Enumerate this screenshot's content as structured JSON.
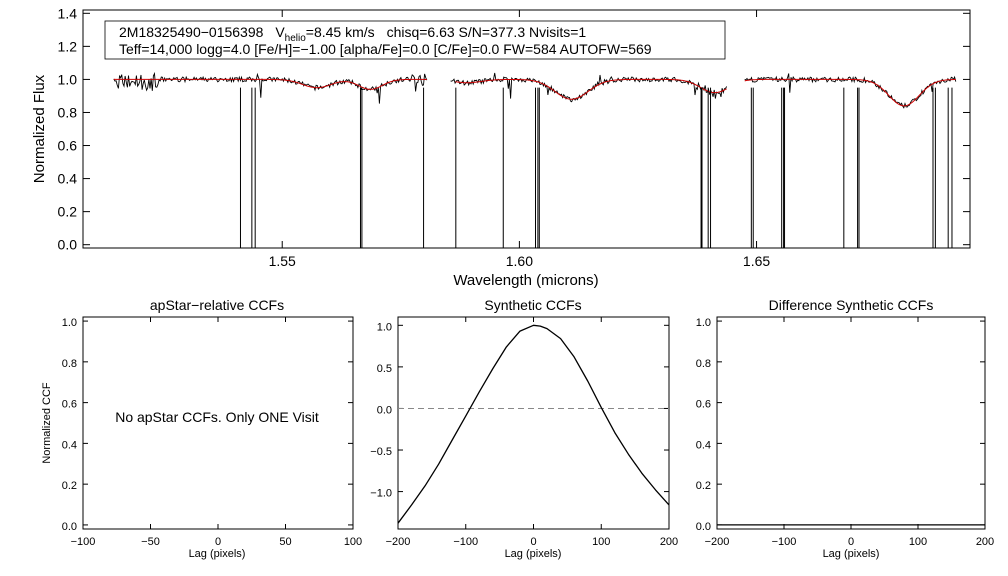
{
  "chart_data": [
    {
      "type": "line",
      "panel": "spectrum",
      "xlabel": "Wavelength (microns)",
      "ylabel": "Normalized Flux",
      "xlim": [
        1.508,
        1.695
      ],
      "ylim": [
        -0.02,
        1.42
      ],
      "x_ticks": [
        {
          "value": 1.55,
          "label": "1.55"
        },
        {
          "value": 1.6,
          "label": "1.60"
        },
        {
          "value": 1.65,
          "label": "1.65"
        }
      ],
      "y_ticks": [
        {
          "value": 0.0,
          "label": "0.0"
        },
        {
          "value": 0.2,
          "label": "0.2"
        },
        {
          "value": 0.4,
          "label": "0.4"
        },
        {
          "value": 0.6,
          "label": "0.6"
        },
        {
          "value": 0.8,
          "label": "0.8"
        },
        {
          "value": 1.0,
          "label": "1.0"
        },
        {
          "value": 1.2,
          "label": "1.2"
        },
        {
          "value": 1.4,
          "label": "1.4"
        }
      ],
      "info_line1": {
        "star": "2M18325490−0156398",
        "v_prefix": "V",
        "v_sub": "helio",
        "v_value": "=8.45 km/s",
        "rest": "chisq=6.63  S/N=377.3  Nvisits=1"
      },
      "info_line2": "Teff=14,000 logg=4.0 [Fe/H]=−1.00 [alpha/Fe]=0.0 [C/Fe]=0.0 FW=584 AUTOFW=569",
      "series": [
        {
          "color": "#000000",
          "segments": [
            [
              1.5145,
              1.5805
            ],
            [
              1.5855,
              1.6437
            ],
            [
              1.6475,
              1.692
            ]
          ]
        },
        {
          "color": "#cc0000",
          "segments": [
            [
              1.5145,
              1.5805
            ],
            [
              1.5865,
              1.6437
            ],
            [
              1.6475,
              1.692
            ]
          ]
        }
      ],
      "absorption_lines": [
        {
          "center": 1.5573,
          "depth": 0.05,
          "width": 0.003
        },
        {
          "center": 1.5686,
          "depth": 0.06,
          "width": 0.0025
        },
        {
          "center": 1.589,
          "depth": 0.02,
          "width": 0.003
        },
        {
          "center": 1.611,
          "depth": 0.12,
          "width": 0.0035
        },
        {
          "center": 1.6412,
          "depth": 0.08,
          "width": 0.003
        },
        {
          "center": 1.6811,
          "depth": 0.16,
          "width": 0.0032
        }
      ],
      "spikes": [
        1.5412,
        1.5436,
        1.5443,
        1.5665,
        1.5668,
        1.5798,
        1.5866,
        1.5966,
        1.6034,
        1.6039,
        1.6042,
        1.6383,
        1.6385,
        1.6398,
        1.6403,
        1.6489,
        1.6493,
        1.6553,
        1.6557,
        1.6559,
        1.6684,
        1.6713,
        1.6716,
        1.6872,
        1.6877,
        1.6904,
        1.6912
      ]
    },
    {
      "type": "line",
      "panel": "apstar-ccf",
      "title": "apStar−relative CCFs",
      "xlabel": "Lag (pixels)",
      "ylabel": "Normalized CCF",
      "xlim": [
        -100,
        100
      ],
      "ylim": [
        -0.02,
        1.02
      ],
      "x_ticks": [
        {
          "value": -100,
          "label": "−100"
        },
        {
          "value": -50,
          "label": "−50"
        },
        {
          "value": 0,
          "label": "0"
        },
        {
          "value": 50,
          "label": "50"
        },
        {
          "value": 100,
          "label": "100"
        }
      ],
      "y_ticks": [
        {
          "value": 0.0,
          "label": "0.0"
        },
        {
          "value": 0.2,
          "label": "0.2"
        },
        {
          "value": 0.4,
          "label": "0.4"
        },
        {
          "value": 0.6,
          "label": "0.6"
        },
        {
          "value": 0.8,
          "label": "0.8"
        },
        {
          "value": 1.0,
          "label": "1.0"
        }
      ],
      "message": "No apStar CCFs.  Only ONE Visit",
      "series": []
    },
    {
      "type": "line",
      "panel": "synthetic-ccf",
      "title": "Synthetic CCFs",
      "xlabel": "Lag (pixels)",
      "xlim": [
        -200,
        200
      ],
      "ylim": [
        -1.45,
        1.1
      ],
      "x_ticks": [
        {
          "value": -200,
          "label": "−200"
        },
        {
          "value": -100,
          "label": "−100"
        },
        {
          "value": 0,
          "label": "0"
        },
        {
          "value": 100,
          "label": "100"
        },
        {
          "value": 200,
          "label": "200"
        }
      ],
      "y_ticks": [
        {
          "value": -1.0,
          "label": "−1.0"
        },
        {
          "value": -0.5,
          "label": "−0.5"
        },
        {
          "value": 0.0,
          "label": "0.0"
        },
        {
          "value": 0.5,
          "label": "0.5"
        },
        {
          "value": 1.0,
          "label": "1.0"
        }
      ],
      "zero_line": 0.0,
      "series": [
        {
          "color": "#000000",
          "x": [
            -200,
            -180,
            -160,
            -140,
            -120,
            -100,
            -80,
            -60,
            -40,
            -20,
            0,
            10,
            20,
            40,
            60,
            80,
            100,
            120,
            140,
            160,
            180,
            200
          ],
          "y": [
            -1.38,
            -1.16,
            -0.93,
            -0.67,
            -0.38,
            -0.09,
            0.2,
            0.48,
            0.74,
            0.93,
            1.0,
            0.99,
            0.96,
            0.84,
            0.62,
            0.33,
            0.01,
            -0.29,
            -0.55,
            -0.78,
            -0.98,
            -1.16
          ]
        }
      ]
    },
    {
      "type": "line",
      "panel": "difference-ccf",
      "title": "Difference Synthetic CCFs",
      "xlabel": "Lag (pixels)",
      "xlim": [
        -200,
        200
      ],
      "ylim": [
        -0.02,
        1.02
      ],
      "x_ticks": [
        {
          "value": -200,
          "label": "−200"
        },
        {
          "value": -100,
          "label": "−100"
        },
        {
          "value": 0,
          "label": "0"
        },
        {
          "value": 100,
          "label": "100"
        },
        {
          "value": 200,
          "label": "200"
        }
      ],
      "y_ticks": [
        {
          "value": 0.0,
          "label": "0.0"
        },
        {
          "value": 0.2,
          "label": "0.2"
        },
        {
          "value": 0.4,
          "label": "0.4"
        },
        {
          "value": 0.6,
          "label": "0.6"
        },
        {
          "value": 0.8,
          "label": "0.8"
        },
        {
          "value": 1.0,
          "label": "1.0"
        }
      ],
      "series": [
        {
          "color": "#000000",
          "x": [
            -200,
            200
          ],
          "y": [
            0.0,
            0.0
          ]
        }
      ]
    }
  ]
}
